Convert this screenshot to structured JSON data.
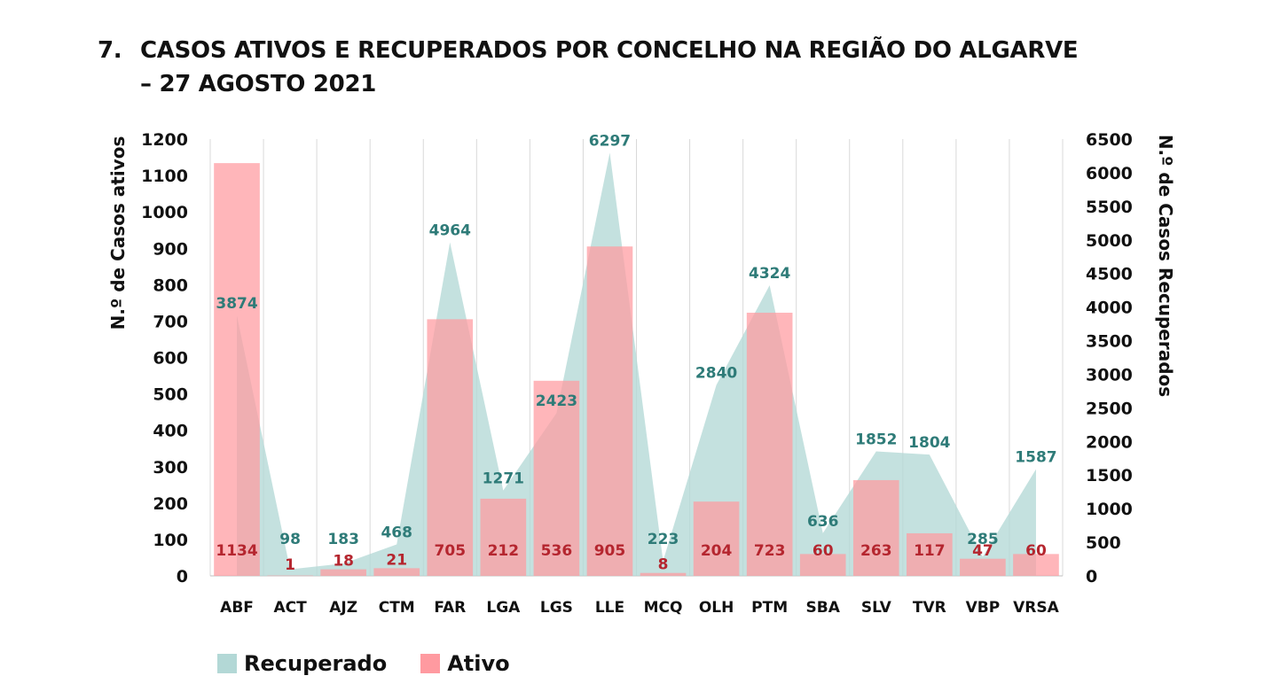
{
  "title": {
    "number": "7.",
    "line1": "CASOS ATIVOS E RECUPERADOS POR CONCELHO NA REGIÃO DO ALGARVE",
    "line2": "– 27 AGOSTO 2021"
  },
  "colors": {
    "recuperado": "#b3d8d6",
    "ativo": "#ff9aa0",
    "grid": "#d9d9d9"
  },
  "legend": {
    "recuperado": "Recuperado",
    "ativo": "Ativo"
  },
  "chart_data": {
    "type": "bar",
    "categories": [
      "ABF",
      "ACT",
      "AJZ",
      "CTM",
      "FAR",
      "LGA",
      "LGS",
      "LLE",
      "MCQ",
      "OLH",
      "PTM",
      "SBA",
      "SLV",
      "TVR",
      "VBP",
      "VRSA"
    ],
    "series": [
      {
        "name": "Ativo",
        "type": "bar",
        "axis": "left",
        "values": [
          1134,
          1,
          18,
          21,
          705,
          212,
          536,
          905,
          8,
          204,
          723,
          60,
          263,
          117,
          47,
          60
        ]
      },
      {
        "name": "Recuperado",
        "type": "area",
        "axis": "right",
        "values": [
          3874,
          98,
          183,
          468,
          4964,
          1271,
          2423,
          6297,
          223,
          2840,
          4324,
          636,
          1852,
          1804,
          285,
          1587
        ]
      }
    ],
    "ylabel": "N.º de Casos ativos",
    "y2label": "N.º de Casos Recuperados",
    "ylim": [
      0,
      1200
    ],
    "y2lim": [
      0,
      6500
    ],
    "yticks": [
      0,
      100,
      200,
      300,
      400,
      500,
      600,
      700,
      800,
      900,
      1000,
      1100,
      1200
    ],
    "y2ticks": [
      0,
      500,
      1000,
      1500,
      2000,
      2500,
      3000,
      3500,
      4000,
      4500,
      5000,
      5500,
      6000,
      6500
    ],
    "grid": "vertical",
    "legend_position": "bottom-left"
  }
}
